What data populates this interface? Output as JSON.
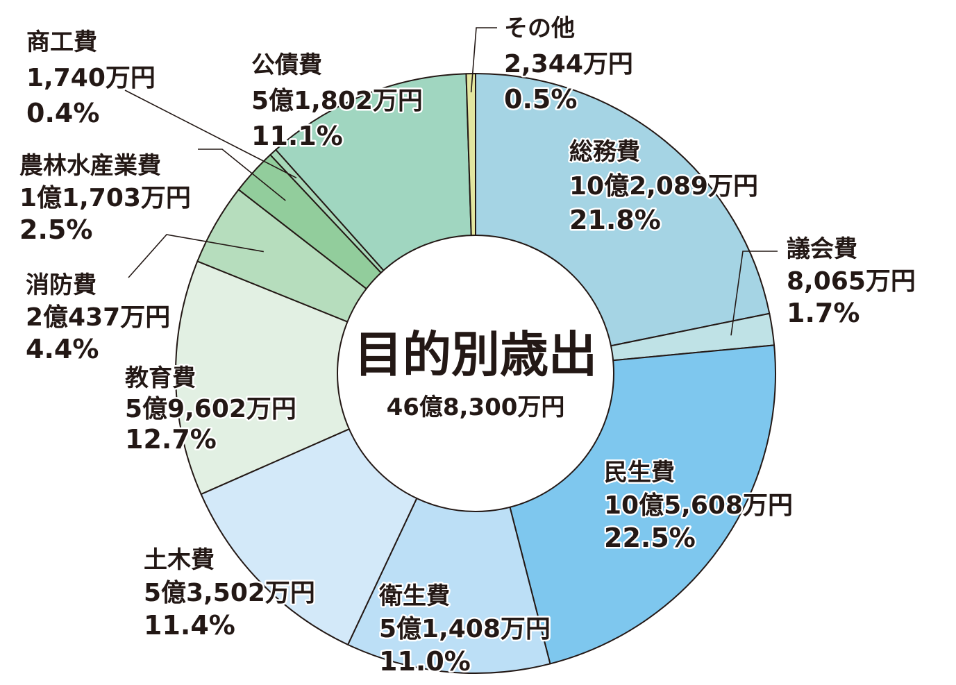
{
  "chart_data": {
    "type": "pie",
    "title": "目的別歳出",
    "total": "46億8,300万円",
    "slices": [
      {
        "key": "somu",
        "name": "総務費",
        "amount": "10億2,089万円",
        "percent_label": "21.8%",
        "value": 21.8,
        "color": "#a5d4e4"
      },
      {
        "key": "gikai",
        "name": "議会費",
        "amount": "8,065万円",
        "percent_label": "1.7%",
        "value": 1.7,
        "color": "#bfe2e6"
      },
      {
        "key": "minsei",
        "name": "民生費",
        "amount": "10億5,608万円",
        "percent_label": "22.5%",
        "value": 22.5,
        "color": "#7ec7ee"
      },
      {
        "key": "eisei",
        "name": "衛生費",
        "amount": "5億1,408万円",
        "percent_label": "11.0%",
        "value": 11.0,
        "color": "#bcdff6"
      },
      {
        "key": "doboku",
        "name": "土木費",
        "amount": "5億3,502万円",
        "percent_label": "11.4%",
        "value": 11.4,
        "color": "#d3e9f9"
      },
      {
        "key": "kyoiku",
        "name": "教育費",
        "amount": "5億9,602万円",
        "percent_label": "12.7%",
        "value": 12.7,
        "color": "#e2f0e3"
      },
      {
        "key": "shobo",
        "name": "消防費",
        "amount": "2億437万円",
        "percent_label": "4.4%",
        "value": 4.4,
        "color": "#b6ddbd"
      },
      {
        "key": "norin",
        "name": "農林水産業費",
        "amount": "1億1,703万円",
        "percent_label": "2.5%",
        "value": 2.5,
        "color": "#92cd9c"
      },
      {
        "key": "shoko",
        "name": "商工費",
        "amount": "1,740万円",
        "percent_label": "0.4%",
        "value": 0.4,
        "color": "#a7d8b8"
      },
      {
        "key": "kosai",
        "name": "公債費",
        "amount": "5億1,802万円",
        "percent_label": "11.1%",
        "value": 11.1,
        "color": "#a0d6c0"
      },
      {
        "key": "sonota",
        "name": "その他",
        "amount": "2,344万円",
        "percent_label": "0.5%",
        "value": 0.5,
        "color": "#e3e6a0"
      }
    ]
  }
}
